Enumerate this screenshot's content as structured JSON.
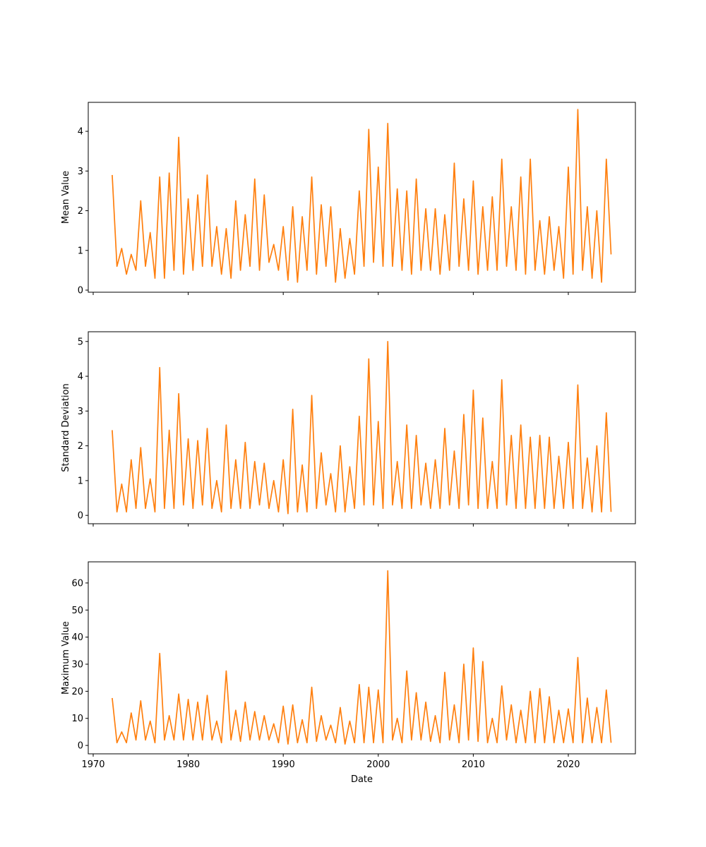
{
  "chart_data": [
    {
      "type": "line",
      "ylabel": "Mean Value",
      "x": [
        1972.0,
        1972.5,
        1973.0,
        1973.5,
        1974.0,
        1974.5,
        1975.0,
        1975.5,
        1976.0,
        1976.5,
        1977.0,
        1977.5,
        1978.0,
        1978.5,
        1979.0,
        1979.5,
        1980.0,
        1980.5,
        1981.0,
        1981.5,
        1982.0,
        1982.5,
        1983.0,
        1983.5,
        1984.0,
        1984.5,
        1985.0,
        1985.5,
        1986.0,
        1986.5,
        1987.0,
        1987.5,
        1988.0,
        1988.5,
        1989.0,
        1989.5,
        1990.0,
        1990.5,
        1991.0,
        1991.5,
        1992.0,
        1992.5,
        1993.0,
        1993.5,
        1994.0,
        1994.5,
        1995.0,
        1995.5,
        1996.0,
        1996.5,
        1997.0,
        1997.5,
        1998.0,
        1998.5,
        1999.0,
        1999.5,
        2000.0,
        2000.5,
        2001.0,
        2001.5,
        2002.0,
        2002.5,
        2003.0,
        2003.5,
        2004.0,
        2004.5,
        2005.0,
        2005.5,
        2006.0,
        2006.5,
        2007.0,
        2007.5,
        2008.0,
        2008.5,
        2009.0,
        2009.5,
        2010.0,
        2010.5,
        2011.0,
        2011.5,
        2012.0,
        2012.5,
        2013.0,
        2013.5,
        2014.0,
        2014.5,
        2015.0,
        2015.5,
        2016.0,
        2016.5,
        2017.0,
        2017.5,
        2018.0,
        2018.5,
        2019.0,
        2019.5,
        2020.0,
        2020.5,
        2021.0,
        2021.5,
        2022.0,
        2022.5,
        2023.0,
        2023.5,
        2024.0,
        2024.5
      ],
      "series": [
        {
          "color": "#ff7f0e",
          "values": [
            2.9,
            0.6,
            1.05,
            0.4,
            0.9,
            0.5,
            2.25,
            0.6,
            1.45,
            0.3,
            2.85,
            0.3,
            2.95,
            0.5,
            3.85,
            0.4,
            2.3,
            0.5,
            2.4,
            0.6,
            2.9,
            0.6,
            1.6,
            0.4,
            1.55,
            0.3,
            2.25,
            0.5,
            1.9,
            0.6,
            2.8,
            0.5,
            2.4,
            0.7,
            1.15,
            0.5,
            1.6,
            0.25,
            2.1,
            0.2,
            1.85,
            0.5,
            2.85,
            0.4,
            2.15,
            0.6,
            2.1,
            0.2,
            1.55,
            0.3,
            1.3,
            0.4,
            2.5,
            0.6,
            4.05,
            0.7,
            3.1,
            0.6,
            4.2,
            0.6,
            2.55,
            0.5,
            2.5,
            0.4,
            2.8,
            0.5,
            2.05,
            0.5,
            2.05,
            0.4,
            1.9,
            0.5,
            3.2,
            0.6,
            2.3,
            0.5,
            2.75,
            0.4,
            2.1,
            0.5,
            2.35,
            0.5,
            3.3,
            0.6,
            2.1,
            0.5,
            2.85,
            0.4,
            3.3,
            0.5,
            1.75,
            0.4,
            1.85,
            0.5,
            1.6,
            0.3,
            3.1,
            0.4,
            4.55,
            0.5,
            2.1,
            0.3,
            2.0,
            0.2,
            3.3,
            0.9
          ]
        }
      ],
      "xlim": [
        1969.48,
        2027.06
      ],
      "xticks": [
        1970,
        1980,
        1990,
        2000,
        2010,
        2020
      ],
      "xticklabels": false,
      "ylim": [
        -0.053,
        4.73
      ],
      "yticks": [
        0,
        1,
        2,
        3,
        4
      ]
    },
    {
      "type": "line",
      "ylabel": "Standard Deviation",
      "x": [
        1972.0,
        1972.5,
        1973.0,
        1973.5,
        1974.0,
        1974.5,
        1975.0,
        1975.5,
        1976.0,
        1976.5,
        1977.0,
        1977.5,
        1978.0,
        1978.5,
        1979.0,
        1979.5,
        1980.0,
        1980.5,
        1981.0,
        1981.5,
        1982.0,
        1982.5,
        1983.0,
        1983.5,
        1984.0,
        1984.5,
        1985.0,
        1985.5,
        1986.0,
        1986.5,
        1987.0,
        1987.5,
        1988.0,
        1988.5,
        1989.0,
        1989.5,
        1990.0,
        1990.5,
        1991.0,
        1991.5,
        1992.0,
        1992.5,
        1993.0,
        1993.5,
        1994.0,
        1994.5,
        1995.0,
        1995.5,
        1996.0,
        1996.5,
        1997.0,
        1997.5,
        1998.0,
        1998.5,
        1999.0,
        1999.5,
        2000.0,
        2000.5,
        2001.0,
        2001.5,
        2002.0,
        2002.5,
        2003.0,
        2003.5,
        2004.0,
        2004.5,
        2005.0,
        2005.5,
        2006.0,
        2006.5,
        2007.0,
        2007.5,
        2008.0,
        2008.5,
        2009.0,
        2009.5,
        2010.0,
        2010.5,
        2011.0,
        2011.5,
        2012.0,
        2012.5,
        2013.0,
        2013.5,
        2014.0,
        2014.5,
        2015.0,
        2015.5,
        2016.0,
        2016.5,
        2017.0,
        2017.5,
        2018.0,
        2018.5,
        2019.0,
        2019.5,
        2020.0,
        2020.5,
        2021.0,
        2021.5,
        2022.0,
        2022.5,
        2023.0,
        2023.5,
        2024.0,
        2024.5
      ],
      "series": [
        {
          "color": "#ff7f0e",
          "values": [
            2.45,
            0.1,
            0.9,
            0.1,
            1.6,
            0.2,
            1.95,
            0.2,
            1.05,
            0.1,
            4.25,
            0.2,
            2.45,
            0.2,
            3.5,
            0.3,
            2.2,
            0.2,
            2.15,
            0.3,
            2.5,
            0.2,
            1.0,
            0.1,
            2.6,
            0.2,
            1.6,
            0.2,
            2.1,
            0.2,
            1.55,
            0.3,
            1.5,
            0.2,
            1.0,
            0.1,
            1.6,
            0.05,
            3.05,
            0.1,
            1.45,
            0.1,
            3.45,
            0.2,
            1.8,
            0.3,
            1.2,
            0.1,
            2.0,
            0.1,
            1.4,
            0.2,
            2.85,
            0.3,
            4.5,
            0.3,
            2.7,
            0.2,
            5.0,
            0.3,
            1.55,
            0.2,
            2.6,
            0.2,
            2.3,
            0.3,
            1.5,
            0.2,
            1.6,
            0.2,
            2.5,
            0.3,
            1.85,
            0.2,
            2.9,
            0.3,
            3.6,
            0.2,
            2.8,
            0.2,
            1.55,
            0.2,
            3.9,
            0.3,
            2.3,
            0.2,
            2.6,
            0.2,
            2.25,
            0.2,
            2.3,
            0.2,
            2.25,
            0.2,
            1.7,
            0.2,
            2.1,
            0.2,
            3.75,
            0.2,
            1.65,
            0.1,
            2.0,
            0.1,
            2.95,
            0.1
          ]
        }
      ],
      "xlim": [
        1969.48,
        2027.06
      ],
      "xticks": [
        1970,
        1980,
        1990,
        2000,
        2010,
        2020
      ],
      "xticklabels": false,
      "ylim": [
        -0.24,
        5.28
      ],
      "yticks": [
        0,
        1,
        2,
        3,
        4,
        5
      ]
    },
    {
      "type": "line",
      "xlabel": "Date",
      "ylabel": "Maximum Value",
      "x": [
        1972.0,
        1972.5,
        1973.0,
        1973.5,
        1974.0,
        1974.5,
        1975.0,
        1975.5,
        1976.0,
        1976.5,
        1977.0,
        1977.5,
        1978.0,
        1978.5,
        1979.0,
        1979.5,
        1980.0,
        1980.5,
        1981.0,
        1981.5,
        1982.0,
        1982.5,
        1983.0,
        1983.5,
        1984.0,
        1984.5,
        1985.0,
        1985.5,
        1986.0,
        1986.5,
        1987.0,
        1987.5,
        1988.0,
        1988.5,
        1989.0,
        1989.5,
        1990.0,
        1990.5,
        1991.0,
        1991.5,
        1992.0,
        1992.5,
        1993.0,
        1993.5,
        1994.0,
        1994.5,
        1995.0,
        1995.5,
        1996.0,
        1996.5,
        1997.0,
        1997.5,
        1998.0,
        1998.5,
        1999.0,
        1999.5,
        2000.0,
        2000.5,
        2001.0,
        2001.5,
        2002.0,
        2002.5,
        2003.0,
        2003.5,
        2004.0,
        2004.5,
        2005.0,
        2005.5,
        2006.0,
        2006.5,
        2007.0,
        2007.5,
        2008.0,
        2008.5,
        2009.0,
        2009.5,
        2010.0,
        2010.5,
        2011.0,
        2011.5,
        2012.0,
        2012.5,
        2013.0,
        2013.5,
        2014.0,
        2014.5,
        2015.0,
        2015.5,
        2016.0,
        2016.5,
        2017.0,
        2017.5,
        2018.0,
        2018.5,
        2019.0,
        2019.5,
        2020.0,
        2020.5,
        2021.0,
        2021.5,
        2022.0,
        2022.5,
        2023.0,
        2023.5,
        2024.0,
        2024.5
      ],
      "series": [
        {
          "color": "#ff7f0e",
          "values": [
            17.5,
            1,
            5,
            1,
            12,
            2,
            16.5,
            2,
            9,
            1,
            34,
            2,
            11,
            2,
            19,
            2,
            17,
            2,
            16,
            2,
            18.5,
            2,
            9,
            1,
            27.5,
            2,
            13,
            1.5,
            16,
            2,
            12.5,
            2,
            11,
            2,
            8,
            1,
            14.5,
            0.5,
            15,
            1,
            9.5,
            1,
            21.5,
            1.5,
            11,
            2,
            7.5,
            1,
            14,
            0.5,
            9,
            1,
            22.5,
            1,
            21.5,
            1,
            20.5,
            1,
            64.5,
            2,
            10,
            1,
            27.5,
            2,
            19.5,
            2,
            16,
            1.5,
            11,
            1,
            27,
            2,
            15,
            1,
            30,
            2,
            36,
            1.5,
            31,
            1,
            10,
            1,
            22,
            2,
            15,
            1,
            13,
            1,
            20,
            1,
            21,
            1,
            18,
            1,
            13,
            1,
            13.5,
            1,
            32.5,
            1,
            17.5,
            1,
            14,
            1,
            20.5,
            1
          ]
        }
      ],
      "xlim": [
        1969.48,
        2027.06
      ],
      "xticks": [
        1970,
        1980,
        1990,
        2000,
        2010,
        2020
      ],
      "xticklabels": true,
      "ylim": [
        -3.1,
        67.8
      ],
      "yticks": [
        0,
        10,
        20,
        30,
        40,
        50,
        60
      ]
    }
  ]
}
